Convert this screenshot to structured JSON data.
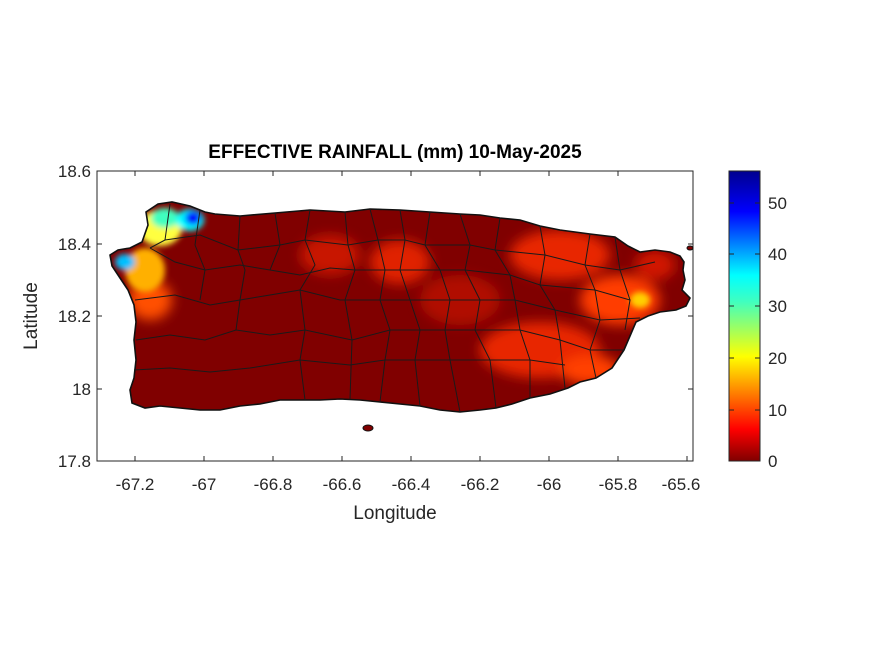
{
  "map": {
    "title": "EFFECTIVE RAINFALL (mm) 10-May-2025",
    "xlabel": "Longitude",
    "ylabel": "Latitude",
    "x_ticks": [
      "-67.2",
      "-67",
      "-66.8",
      "-66.6",
      "-66.4",
      "-66.2",
      "-66",
      "-65.8",
      "-65.6"
    ],
    "y_ticks": [
      "18.6",
      "18.4",
      "18.2",
      "18",
      "17.8"
    ],
    "colorbar_ticks": [
      "50",
      "40",
      "30",
      "20",
      "10",
      "0"
    ],
    "colormap": "jet",
    "colors": {
      "low": "#800000",
      "mid": "#ff2000",
      "high": "#00008f"
    }
  },
  "chart_data": {
    "type": "heatmap",
    "title": "EFFECTIVE RAINFALL (mm) 10-May-2025",
    "xlabel": "Longitude",
    "ylabel": "Latitude",
    "xlim": [
      -67.3,
      -65.58
    ],
    "ylim": [
      17.8,
      18.6
    ],
    "x_ticks": [
      -67.2,
      -67,
      -66.8,
      -66.6,
      -66.4,
      -66.2,
      -66,
      -65.8,
      -65.6
    ],
    "y_ticks": [
      17.8,
      18,
      18.2,
      18.4,
      18.6
    ],
    "colorbar": {
      "min": 0,
      "max": 56,
      "ticks": [
        0,
        10,
        20,
        30,
        40,
        50
      ],
      "colormap": "jet"
    },
    "grid": false,
    "hotspots": [
      {
        "lon": -67.05,
        "lat": 18.46,
        "value": 55
      },
      {
        "lon": -67.13,
        "lat": 18.47,
        "value": 30
      },
      {
        "lon": -67.2,
        "lat": 18.37,
        "value": 25
      },
      {
        "lon": -67.15,
        "lat": 18.3,
        "value": 15
      },
      {
        "lon": -66.35,
        "lat": 18.38,
        "value": 12
      },
      {
        "lon": -65.9,
        "lat": 18.3,
        "value": 12
      },
      {
        "lon": -65.95,
        "lat": 18.05,
        "value": 11
      },
      {
        "lon": -66.55,
        "lat": 18.4,
        "value": 9
      }
    ]
  }
}
